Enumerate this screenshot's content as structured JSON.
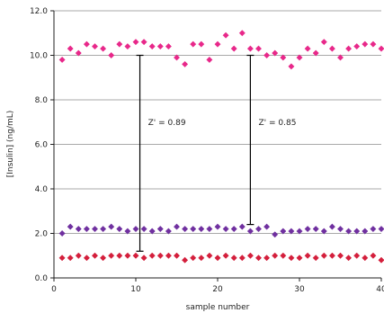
{
  "chart_data": {
    "type": "scatter",
    "title": "",
    "xlabel": "sample number",
    "ylabel": "[Insulin] (ng/mL)",
    "xlim": [
      0,
      40
    ],
    "ylim": [
      0,
      12
    ],
    "x_ticks": [
      0,
      10,
      20,
      30,
      40
    ],
    "y_ticks": [
      0,
      2,
      4,
      6,
      8,
      10,
      12
    ],
    "x_tick_labels": [
      "0",
      "10",
      "20",
      "30",
      "40"
    ],
    "y_tick_labels": [
      "0.0",
      "2.0",
      "4.0",
      "6.0",
      "8.0",
      "10.0",
      "12.0"
    ],
    "grid": "horizontal",
    "legend": "none",
    "series": [
      {
        "color": "#e8288a",
        "marker": "diamond",
        "x": [
          1,
          2,
          3,
          4,
          5,
          6,
          7,
          8,
          9,
          10,
          11,
          12,
          13,
          14,
          15,
          16,
          17,
          18,
          19,
          20,
          21,
          22,
          23,
          24,
          25,
          26,
          27,
          28,
          29,
          30,
          31,
          32,
          33,
          34,
          35,
          36,
          37,
          38,
          39,
          40
        ],
        "values": [
          9.8,
          10.3,
          10.1,
          10.5,
          10.4,
          10.3,
          10.0,
          10.5,
          10.4,
          10.6,
          10.6,
          10.4,
          10.4,
          10.4,
          9.9,
          9.6,
          10.5,
          10.5,
          9.8,
          10.5,
          10.9,
          10.3,
          11.0,
          10.3,
          10.3,
          10.0,
          10.1,
          9.9,
          9.5,
          9.9,
          10.3,
          10.1,
          10.6,
          10.3,
          9.9,
          10.3,
          10.4,
          10.5,
          10.5,
          10.3
        ]
      },
      {
        "color": "#7030a0",
        "marker": "diamond",
        "x": [
          1,
          2,
          3,
          4,
          5,
          6,
          7,
          8,
          9,
          10,
          11,
          12,
          13,
          14,
          15,
          16,
          17,
          18,
          19,
          20,
          21,
          22,
          23,
          24,
          25,
          26,
          27,
          28,
          29,
          30,
          31,
          32,
          33,
          34,
          35,
          36,
          37,
          38,
          39,
          40
        ],
        "values": [
          2.0,
          2.3,
          2.2,
          2.2,
          2.2,
          2.2,
          2.3,
          2.2,
          2.1,
          2.2,
          2.2,
          2.1,
          2.2,
          2.1,
          2.3,
          2.2,
          2.2,
          2.2,
          2.2,
          2.3,
          2.2,
          2.2,
          2.3,
          2.1,
          2.2,
          2.3,
          1.95,
          2.1,
          2.1,
          2.1,
          2.2,
          2.2,
          2.1,
          2.3,
          2.2,
          2.1,
          2.1,
          2.1,
          2.2,
          2.2
        ]
      },
      {
        "color": "#d41f3c",
        "marker": "diamond",
        "x": [
          1,
          2,
          3,
          4,
          5,
          6,
          7,
          8,
          9,
          10,
          11,
          12,
          13,
          14,
          15,
          16,
          17,
          18,
          19,
          20,
          21,
          22,
          23,
          24,
          25,
          26,
          27,
          28,
          29,
          30,
          31,
          32,
          33,
          34,
          35,
          36,
          37,
          38,
          39,
          40
        ],
        "values": [
          0.9,
          0.9,
          1.0,
          0.9,
          1.0,
          0.9,
          1.0,
          1.0,
          1.0,
          1.0,
          0.9,
          1.0,
          1.0,
          1.0,
          1.0,
          0.8,
          0.9,
          0.9,
          1.0,
          0.9,
          1.0,
          0.9,
          0.9,
          1.0,
          0.9,
          0.9,
          1.0,
          1.0,
          0.9,
          0.9,
          1.0,
          0.9,
          1.0,
          1.0,
          1.0,
          0.9,
          1.0,
          0.9,
          1.0,
          0.8
        ]
      }
    ],
    "annotations": [
      {
        "x": 10.5,
        "y_low": 1.2,
        "y_high": 10.0,
        "label": "Z' = 0.89",
        "label_x": 11.5,
        "label_y": 7.0
      },
      {
        "x": 24.0,
        "y_low": 2.4,
        "y_high": 10.0,
        "label": "Z' = 0.85",
        "label_x": 25.0,
        "label_y": 7.0
      }
    ]
  }
}
